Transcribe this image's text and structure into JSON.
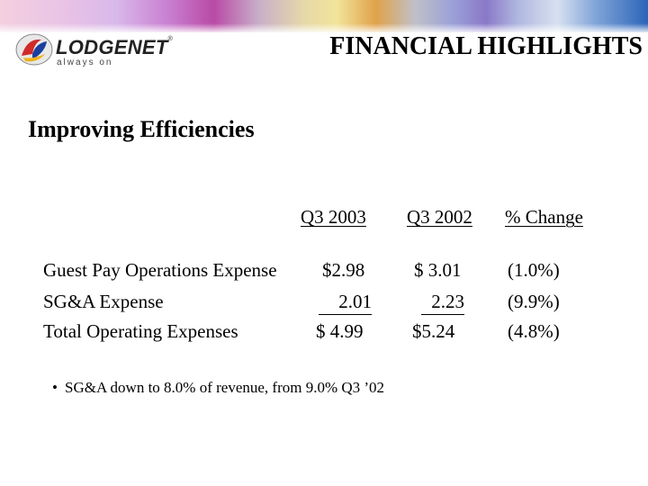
{
  "header": {
    "title": "FINANCIAL HIGHLIGHTS",
    "logo_word": "LODGENET",
    "logo_tm": "®",
    "logo_tagline": "always on",
    "logo_icon": "lodgenet-logo-icon"
  },
  "section": {
    "heading": "Improving Efficiencies"
  },
  "table": {
    "columns": [
      "Q3 2003",
      "Q3 2002",
      "% Change"
    ],
    "rows": [
      {
        "label": "Guest Pay Operations Expense",
        "q3_2003": "$2.98",
        "q3_2002": "$ 3.01",
        "change": "(1.0%)"
      },
      {
        "label": "SG&A Expense",
        "q3_2003": "2.01",
        "q3_2002": "2.23",
        "change": "(9.9%)"
      },
      {
        "label": "Total Operating Expenses",
        "q3_2003": "$ 4.99",
        "q3_2002": "$5.24",
        "change": "(4.8%)"
      }
    ]
  },
  "bullets": [
    {
      "marker": "•",
      "text": "SG&A down to 8.0% of revenue, from 9.0% Q3 ’02"
    }
  ],
  "colors": {
    "band_start": "#f3d0df",
    "band_end": "#2c64b8"
  }
}
